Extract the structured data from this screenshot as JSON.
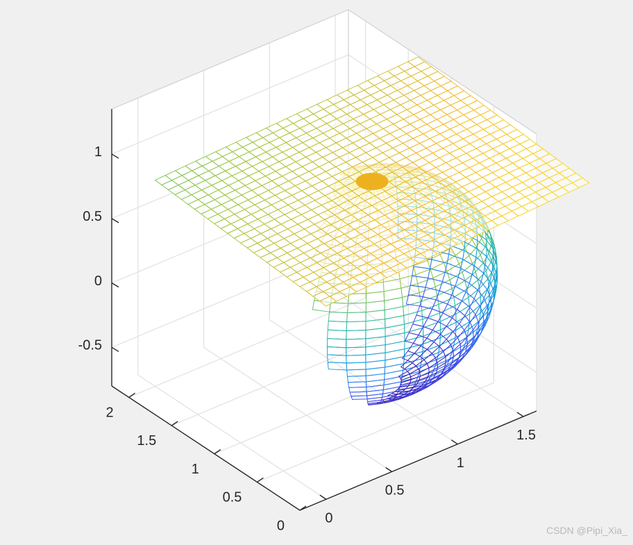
{
  "chart_data": {
    "type": "surface-mesh-3d",
    "title": "",
    "xlabel": "",
    "ylabel": "",
    "zlabel": "",
    "view": "3d",
    "grid": true,
    "colormap": "parula",
    "x_axis": {
      "range": [
        -0.2,
        1.6
      ],
      "ticks": [
        0,
        0.5,
        1,
        1.5
      ],
      "tick_labels": [
        "0",
        "0.5",
        "1",
        "1.5"
      ]
    },
    "y_axis": {
      "range": [
        0,
        2.2
      ],
      "ticks": [
        0,
        0.5,
        1,
        1.5,
        2
      ],
      "tick_labels": [
        "0",
        "0.5",
        "1",
        "1.5",
        "2"
      ]
    },
    "z_axis": {
      "range": [
        -0.8,
        1.35
      ],
      "ticks": [
        -0.5,
        0,
        0.5,
        1
      ],
      "tick_labels": [
        "-0.5",
        "0",
        "0.5",
        "1"
      ]
    },
    "objects": [
      {
        "kind": "sphere",
        "center": [
          1,
          1,
          0
        ],
        "radius": 0.8,
        "style": "mesh"
      },
      {
        "kind": "tangent-plane",
        "center": [
          1,
          1,
          0.8
        ],
        "x_range": [
          0,
          2
        ],
        "y_range": [
          0,
          2
        ],
        "tilt": [
          0.05,
          0.05
        ],
        "style": "mesh"
      },
      {
        "kind": "tangent-point",
        "position": [
          1,
          1,
          0.8
        ],
        "color": "#EDB120"
      }
    ]
  },
  "watermark": "CSDN @Pipi_Xia_"
}
